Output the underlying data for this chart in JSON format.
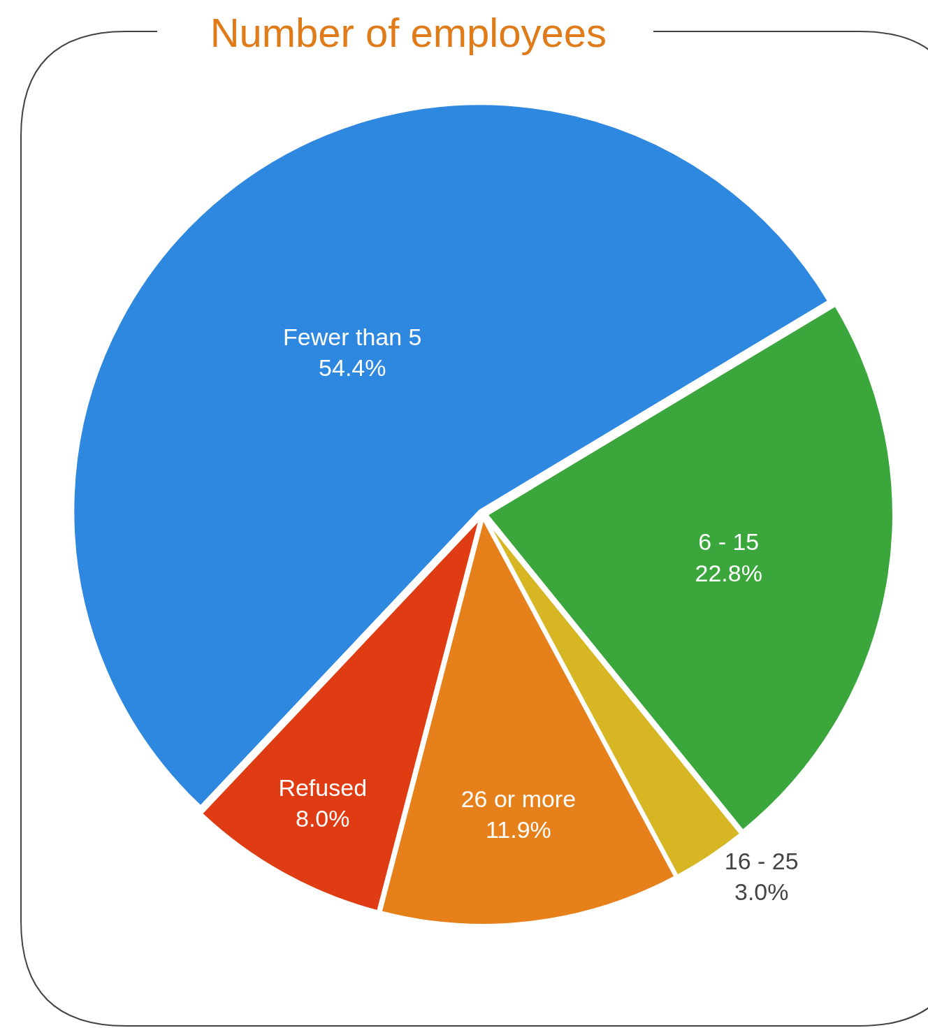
{
  "chart_data": {
    "type": "pie",
    "title": "Number of employees",
    "categories": [
      "6 - 15",
      "16 - 25",
      "26 or more",
      "Refused",
      "Fewer than 5"
    ],
    "values": [
      22.8,
      3.0,
      11.9,
      8.0,
      54.4
    ],
    "value_labels": [
      "22.8%",
      "3.0%",
      "11.9%",
      "8.0%",
      "54.4%"
    ],
    "colors": [
      "#3aa63c",
      "#d6b622",
      "#e6801a",
      "#e03c14",
      "#2f88e0"
    ],
    "legend": false
  }
}
